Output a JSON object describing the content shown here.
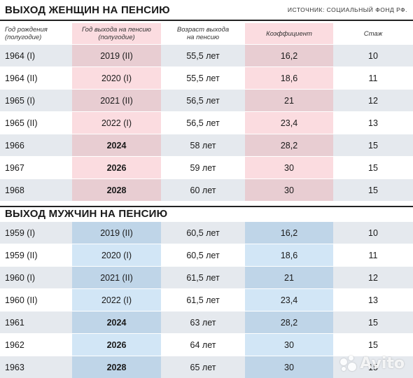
{
  "women": {
    "title": "ВЫХОД ЖЕНЩИН НА ПЕНСИЮ",
    "source": "ИСТОЧНИК: СОЦИАЛЬНЫЙ ФОНД РФ.",
    "headers": {
      "birth_line1": "Год рождения",
      "birth_line2": "(полугодие)",
      "retire_line1": "Год выхода на пенсию",
      "retire_line2": "(полугодие)",
      "age_line1": "Возраст выхода",
      "age_line2": "на пенсию",
      "coef": "Коэффициент",
      "stazh": "Стаж"
    },
    "rows": [
      {
        "birth": "1964 (I)",
        "retire": "2019 (II)",
        "age": "55,5 лет",
        "coef": "16,2",
        "stazh": "10"
      },
      {
        "birth": "1964 (II)",
        "retire": "2020 (I)",
        "age": "55,5 лет",
        "coef": "18,6",
        "stazh": "11"
      },
      {
        "birth": "1965 (I)",
        "retire": "2021 (II)",
        "age": "56,5 лет",
        "coef": "21",
        "stazh": "12"
      },
      {
        "birth": "1965 (II)",
        "retire": "2022 (I)",
        "age": "56,5 лет",
        "coef": "23,4",
        "stazh": "13"
      },
      {
        "birth": "1966",
        "retire": "2024",
        "age": "58 лет",
        "coef": "28,2",
        "stazh": "15"
      },
      {
        "birth": "1967",
        "retire": "2026",
        "age": "59 лет",
        "coef": "30",
        "stazh": "15"
      },
      {
        "birth": "1968",
        "retire": "2028",
        "age": "60 лет",
        "coef": "30",
        "stazh": "15"
      }
    ]
  },
  "men": {
    "title": "ВЫХОД МУЖЧИН НА ПЕНСИЮ",
    "rows": [
      {
        "birth": "1959 (I)",
        "retire": "2019 (II)",
        "age": "60,5 лет",
        "coef": "16,2",
        "stazh": "10"
      },
      {
        "birth": "1959 (II)",
        "retire": "2020 (I)",
        "age": "60,5 лет",
        "coef": "18,6",
        "stazh": "11"
      },
      {
        "birth": "1960 (I)",
        "retire": "2021 (II)",
        "age": "61,5 лет",
        "coef": "21",
        "stazh": "12"
      },
      {
        "birth": "1960 (II)",
        "retire": "2022 (I)",
        "age": "61,5 лет",
        "coef": "23,4",
        "stazh": "13"
      },
      {
        "birth": "1961",
        "retire": "2024",
        "age": "63 лет",
        "coef": "28,2",
        "stazh": "15"
      },
      {
        "birth": "1962",
        "retire": "2026",
        "age": "64 лет",
        "coef": "30",
        "stazh": "15"
      },
      {
        "birth": "1963",
        "retire": "2028",
        "age": "65 лет",
        "coef": "30",
        "stazh": "15"
      }
    ]
  },
  "watermark": "Avito",
  "colors": {
    "women_highlight": "#fbdce0",
    "men_highlight": "#d2e6f6",
    "row_shade": "#e5e9ee"
  }
}
